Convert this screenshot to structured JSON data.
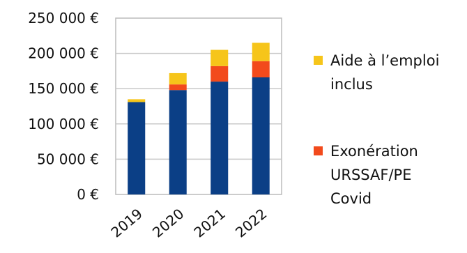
{
  "chart_data": {
    "type": "bar",
    "stacked": true,
    "title": "",
    "xlabel": "",
    "ylabel": "",
    "categories": [
      "2019",
      "2020",
      "2021",
      "2022"
    ],
    "ylim": [
      0,
      250000
    ],
    "y_ticks": [
      0,
      50000,
      100000,
      150000,
      200000,
      250000
    ],
    "y_tick_labels": [
      "0 €",
      "50 000 €",
      "100 000 €",
      "150 000 €",
      "200 000 €",
      "250 000 €"
    ],
    "grid": true,
    "legend_position": "right",
    "series": [
      {
        "name": "",
        "color": "#0b3f86",
        "values": [
          131000,
          148000,
          160000,
          166000
        ]
      },
      {
        "name": "Exonération URSSAF/PE Covid",
        "legend_lines": [
          "Exonération",
          "URSSAF/PE",
          "Covid"
        ],
        "color": "#f24a1c",
        "values": [
          0,
          8000,
          22000,
          23000
        ]
      },
      {
        "name": "Aide à l’emploi inclus",
        "legend_lines": [
          "Aide à l’emploi",
          "inclus"
        ],
        "color": "#f6c51a",
        "values": [
          4000,
          16000,
          23000,
          26000
        ]
      }
    ]
  }
}
